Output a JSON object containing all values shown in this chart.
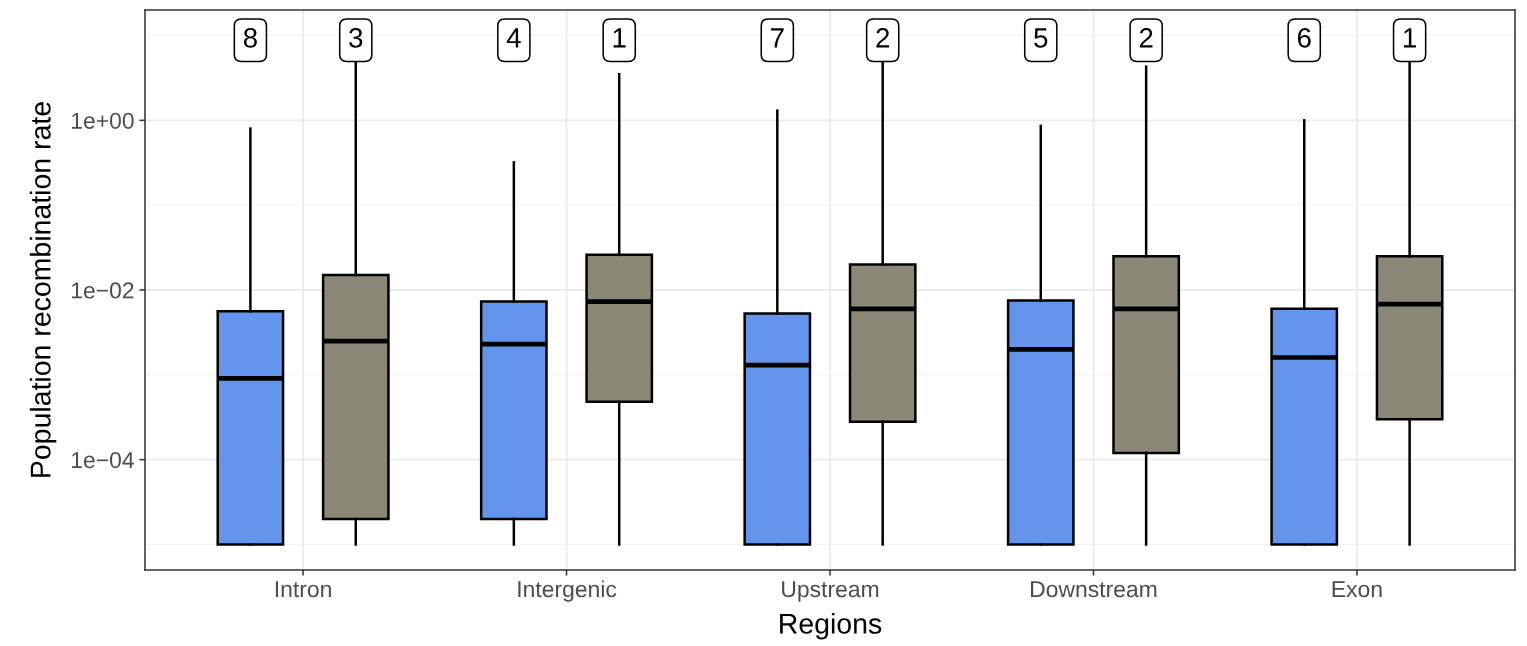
{
  "chart_data": {
    "type": "box",
    "xlabel": "Regions",
    "ylabel": "Population recombination rate",
    "categories": [
      "Intron",
      "Intergenic",
      "Upstream",
      "Downstream",
      "Exon"
    ],
    "log": "y",
    "ylim": [
      5e-06,
      20
    ],
    "yticks": [
      {
        "value": 0.0001,
        "label": "1e−04"
      },
      {
        "value": 0.01,
        "label": "1e−02"
      },
      {
        "value": 1,
        "label": "1e+00"
      }
    ],
    "grid": true,
    "series": [
      {
        "color": "#6495ed",
        "boxes": [
          {
            "low": 1e-05,
            "q1": 1e-05,
            "median": 0.00091,
            "q3": 0.0056,
            "high": 0.8
          },
          {
            "low": 1e-05,
            "q1": 2e-05,
            "median": 0.0023,
            "q3": 0.0073,
            "high": 0.32
          },
          {
            "low": 1e-05,
            "q1": 1e-05,
            "median": 0.0013,
            "q3": 0.0053,
            "high": 1.3
          },
          {
            "low": 1e-05,
            "q1": 1e-05,
            "median": 0.002,
            "q3": 0.0075,
            "high": 0.86
          },
          {
            "low": 1e-05,
            "q1": 1e-05,
            "median": 0.0016,
            "q3": 0.006,
            "high": 1.0
          }
        ]
      },
      {
        "color": "#8b8878",
        "boxes": [
          {
            "low": 1e-05,
            "q1": 2e-05,
            "median": 0.0025,
            "q3": 0.015,
            "high": 5.7
          },
          {
            "low": 1e-05,
            "q1": 0.00048,
            "median": 0.0073,
            "q3": 0.026,
            "high": 3.5
          },
          {
            "low": 1e-05,
            "q1": 0.00028,
            "median": 0.006,
            "q3": 0.02,
            "high": 5.5
          },
          {
            "low": 1e-05,
            "q1": 0.00012,
            "median": 0.006,
            "q3": 0.025,
            "high": 4.3
          },
          {
            "low": 1e-05,
            "q1": 0.0003,
            "median": 0.0068,
            "q3": 0.025,
            "high": 4.7
          }
        ]
      }
    ],
    "annotations": [
      "8",
      "3",
      "4",
      "1",
      "7",
      "2",
      "5",
      "2",
      "6",
      "1"
    ]
  }
}
